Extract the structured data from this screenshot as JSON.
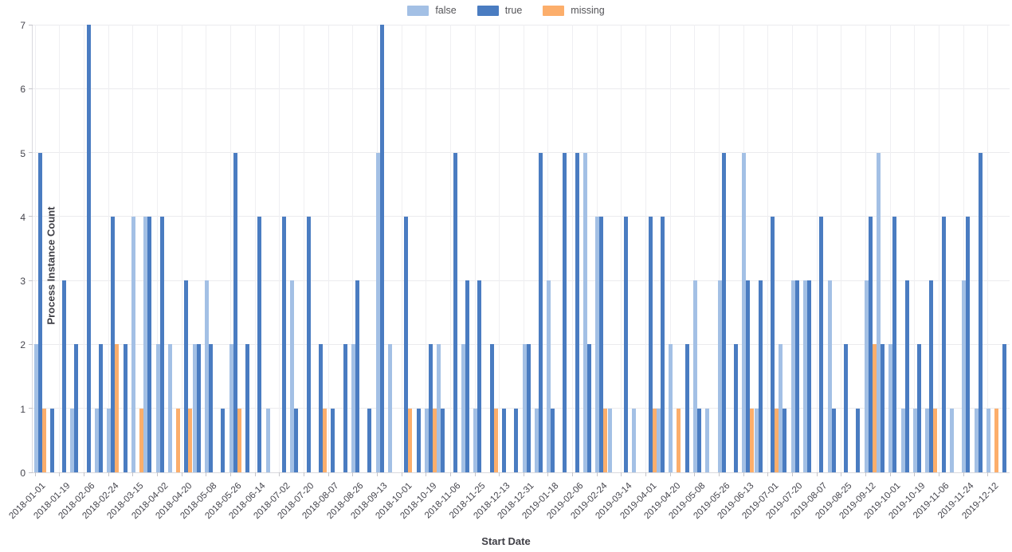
{
  "legend": {
    "items": [
      {
        "label": "false",
        "color": "#a3c0e5"
      },
      {
        "label": "true",
        "color": "#4a7cc1"
      },
      {
        "label": "missing",
        "color": "#fcae6b"
      }
    ]
  },
  "axes": {
    "y_title": "Process Instance Count",
    "x_title": "Start Date",
    "y_ticks": [
      0,
      1,
      2,
      3,
      4,
      5,
      6,
      7
    ]
  },
  "chart_data": {
    "type": "bar",
    "title": "",
    "xlabel": "Start Date",
    "ylabel": "Process Instance Count",
    "ylim": [
      0,
      7
    ],
    "grid": true,
    "legend_position": "top-center",
    "series_order": [
      "false",
      "true",
      "missing"
    ],
    "categories": [
      "2018-01-01",
      "2018-01-19",
      "2018-02-06",
      "2018-02-24",
      "2018-03-15",
      "2018-04-02",
      "2018-04-20",
      "2018-05-08",
      "2018-05-26",
      "2018-06-14",
      "2018-07-02",
      "2018-07-20",
      "2018-08-07",
      "2018-08-26",
      "2018-09-13",
      "2018-10-01",
      "2018-10-19",
      "2018-11-06",
      "2018-11-25",
      "2018-12-13",
      "2018-12-31",
      "2019-01-18",
      "2019-02-06",
      "2019-02-24",
      "2019-03-14",
      "2019-04-01",
      "2019-04-20",
      "2019-05-08",
      "2019-05-26",
      "2019-06-13",
      "2019-07-01",
      "2019-07-20",
      "2019-08-07",
      "2019-08-25",
      "2019-09-12",
      "2019-10-01",
      "2019-10-19",
      "2019-11-06",
      "2019-11-24",
      "2019-12-12"
    ],
    "labels_every_n_clusters": 2,
    "clusters": [
      [
        2,
        5,
        1
      ],
      [
        0,
        1,
        0
      ],
      [
        0,
        3,
        0
      ],
      [
        1,
        2,
        0
      ],
      [
        0,
        7,
        0
      ],
      [
        1,
        2,
        0
      ],
      [
        1,
        4,
        2
      ],
      [
        0,
        2,
        0
      ],
      [
        4,
        0,
        1
      ],
      [
        4,
        4,
        0
      ],
      [
        2,
        4,
        0
      ],
      [
        2,
        0,
        1
      ],
      [
        0,
        3,
        1
      ],
      [
        2,
        2,
        0
      ],
      [
        3,
        2,
        0
      ],
      [
        0,
        1,
        0
      ],
      [
        2,
        5,
        1
      ],
      [
        0,
        2,
        0
      ],
      [
        0,
        4,
        0
      ],
      [
        1,
        0,
        0
      ],
      [
        0,
        4,
        0
      ],
      [
        3,
        1,
        0
      ],
      [
        0,
        4,
        0
      ],
      [
        0,
        2,
        1
      ],
      [
        0,
        1,
        0
      ],
      [
        0,
        2,
        0
      ],
      [
        2,
        3,
        0
      ],
      [
        0,
        1,
        0
      ],
      [
        5,
        7,
        0
      ],
      [
        2,
        0,
        0
      ],
      [
        0,
        4,
        1
      ],
      [
        0,
        1,
        0
      ],
      [
        1,
        2,
        1
      ],
      [
        2,
        1,
        0
      ],
      [
        0,
        5,
        0
      ],
      [
        2,
        3,
        0
      ],
      [
        1,
        3,
        0
      ],
      [
        0,
        2,
        1
      ],
      [
        0,
        1,
        0
      ],
      [
        0,
        1,
        0
      ],
      [
        2,
        2,
        0
      ],
      [
        1,
        5,
        0
      ],
      [
        3,
        1,
        0
      ],
      [
        0,
        5,
        0
      ],
      [
        0,
        5,
        0
      ],
      [
        5,
        2,
        0
      ],
      [
        4,
        4,
        1
      ],
      [
        1,
        0,
        0
      ],
      [
        0,
        4,
        0
      ],
      [
        1,
        0,
        0
      ],
      [
        0,
        4,
        1
      ],
      [
        1,
        4,
        0
      ],
      [
        2,
        0,
        1
      ],
      [
        0,
        2,
        0
      ],
      [
        3,
        1,
        0
      ],
      [
        1,
        0,
        0
      ],
      [
        3,
        5,
        0
      ],
      [
        0,
        2,
        0
      ],
      [
        5,
        3,
        1
      ],
      [
        1,
        3,
        0
      ],
      [
        0,
        4,
        1
      ],
      [
        2,
        1,
        0
      ],
      [
        3,
        3,
        0
      ],
      [
        3,
        3,
        0
      ],
      [
        0,
        4,
        0
      ],
      [
        3,
        1,
        0
      ],
      [
        0,
        2,
        0
      ],
      [
        0,
        1,
        0
      ],
      [
        3,
        4,
        2
      ],
      [
        5,
        2,
        0
      ],
      [
        2,
        4,
        0
      ],
      [
        1,
        3,
        0
      ],
      [
        1,
        2,
        0
      ],
      [
        1,
        3,
        1
      ],
      [
        0,
        4,
        0
      ],
      [
        1,
        0,
        0
      ],
      [
        3,
        4,
        0
      ],
      [
        1,
        5,
        0
      ],
      [
        1,
        0,
        1
      ],
      [
        0,
        2,
        0
      ]
    ]
  }
}
